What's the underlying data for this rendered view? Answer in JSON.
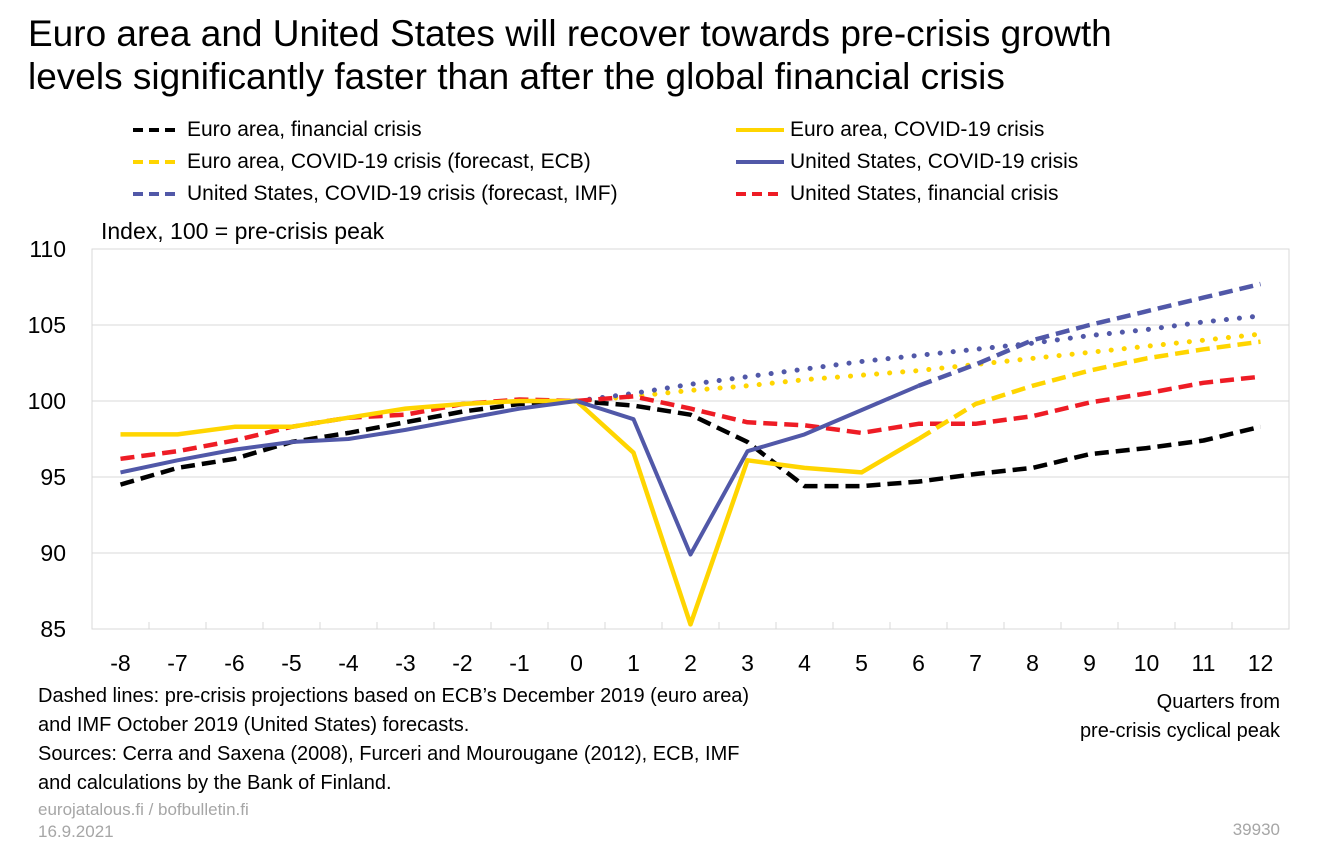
{
  "title_lines": [
    "Euro area and United States will recover towards pre-crisis growth",
    "levels significantly faster than after the global financial crisis"
  ],
  "chart_data": {
    "type": "line",
    "title": "Euro area and United States will recover towards pre-crisis growth levels significantly faster than after the global financial crisis",
    "ylabel": "Index, 100 = pre-crisis peak",
    "xlabel_lines": [
      "Quarters from",
      "pre-crisis cyclical peak"
    ],
    "xlabel": "Quarters from pre-crisis cyclical peak",
    "x": [
      -8,
      -7,
      -6,
      -5,
      -4,
      -3,
      -2,
      -1,
      0,
      1,
      2,
      3,
      4,
      5,
      6,
      7,
      8,
      9,
      10,
      11,
      12
    ],
    "ylim": [
      85,
      110
    ],
    "yticks": [
      85,
      90,
      95,
      100,
      105,
      110
    ],
    "grid": "horizontal",
    "legend_position": "top",
    "series": [
      {
        "name": "Euro area, financial crisis",
        "color": "#000000",
        "style": "dashed",
        "legend_style": "dashed",
        "width": 4.5,
        "x": [
          -8,
          -7,
          -6,
          -5,
          -4,
          -3,
          -2,
          -1,
          0,
          1,
          2,
          3,
          4,
          5,
          6,
          7,
          8,
          9,
          10,
          11,
          12
        ],
        "values": [
          94.5,
          95.6,
          96.2,
          97.3,
          97.9,
          98.6,
          99.3,
          99.8,
          100.0,
          99.7,
          99.1,
          97.3,
          94.4,
          94.4,
          94.7,
          95.2,
          95.6,
          96.5,
          96.9,
          97.4,
          98.3
        ]
      },
      {
        "name": "Euro area, COVID-19 crisis",
        "color": "#ffd500",
        "style": "solid",
        "legend_style": "solid",
        "width": 4.5,
        "x": [
          -8,
          -7,
          -6,
          -5,
          -4,
          -3,
          -2,
          -1,
          0,
          1,
          2,
          3,
          4,
          5,
          6
        ],
        "values": [
          97.8,
          97.8,
          98.3,
          98.3,
          98.9,
          99.5,
          99.8,
          100.0,
          100.0,
          96.6,
          85.3,
          96.1,
          95.6,
          95.3,
          97.5
        ]
      },
      {
        "name": "Euro area, COVID-19 crisis (forecast, ECB)",
        "color": "#ffd500",
        "style": "dashed",
        "legend_style": "dashed",
        "width": 4.5,
        "x": [
          6,
          7,
          8,
          9,
          10,
          11,
          12
        ],
        "values": [
          97.5,
          99.8,
          101.0,
          102.0,
          102.8,
          103.4,
          103.9
        ]
      },
      {
        "name": "United States, COVID-19 crisis",
        "color": "#5158a8",
        "style": "solid",
        "legend_style": "solid",
        "width": 4,
        "x": [
          -8,
          -7,
          -6,
          -5,
          -4,
          -3,
          -2,
          -1,
          0,
          1,
          2,
          3,
          4,
          5,
          6
        ],
        "values": [
          95.3,
          96.1,
          96.8,
          97.3,
          97.5,
          98.1,
          98.8,
          99.5,
          100.0,
          98.8,
          89.9,
          96.7,
          97.8,
          99.4,
          101.0
        ]
      },
      {
        "name": "United States, COVID-19 crisis (forecast, IMF)",
        "color": "#5158a8",
        "style": "dashed",
        "legend_style": "dashed",
        "width": 4.5,
        "x": [
          6,
          7,
          8,
          9,
          10,
          11,
          12
        ],
        "values": [
          101.0,
          102.4,
          104.0,
          105.0,
          105.9,
          106.8,
          107.7
        ]
      },
      {
        "name": "United States, financial crisis",
        "color": "#ee1c25",
        "style": "dashed",
        "legend_style": "dashed",
        "width": 4.5,
        "x": [
          -8,
          -7,
          -6,
          -5,
          -4,
          -3,
          -2,
          -1,
          0,
          1,
          2,
          3,
          4,
          5,
          6,
          7,
          8,
          9,
          10,
          11,
          12
        ],
        "values": [
          96.2,
          96.7,
          97.4,
          98.3,
          98.9,
          99.1,
          99.8,
          100.1,
          100.0,
          100.3,
          99.5,
          98.6,
          98.4,
          97.9,
          98.5,
          98.5,
          99.0,
          99.9,
          100.5,
          101.2,
          101.6
        ]
      },
      {
        "name": "",
        "color": "#ffd500",
        "style": "dotted",
        "legend_style": null,
        "width": 5,
        "x": [
          0,
          1,
          2,
          3,
          4,
          5,
          6,
          7,
          8,
          9,
          10,
          11,
          12
        ],
        "values": [
          100.0,
          100.3,
          100.7,
          101.0,
          101.4,
          101.7,
          102.0,
          102.4,
          102.8,
          103.2,
          103.6,
          104.0,
          104.4
        ]
      },
      {
        "name": "",
        "color": "#5158a8",
        "style": "dotted",
        "legend_style": null,
        "width": 5,
        "x": [
          0,
          1,
          2,
          3,
          4,
          5,
          6,
          7,
          8,
          9,
          10,
          11,
          12
        ],
        "values": [
          100.0,
          100.5,
          101.1,
          101.6,
          102.1,
          102.6,
          103.0,
          103.4,
          103.8,
          104.3,
          104.7,
          105.2,
          105.6
        ]
      }
    ]
  },
  "notes": [
    "Dashed lines: pre-crisis projections based on ECB’s December 2019 (euro area)",
    "and IMF October 2019 (United States) forecasts.",
    "Sources: Cerra and Saxena (2008), Furceri and Mourougane (2012), ECB, IMF",
    "and calculations by the Bank of Finland."
  ],
  "footer": {
    "site": "eurojatalous.fi / bofbulletin.fi",
    "date": "16.9.2021",
    "code": "39930"
  }
}
